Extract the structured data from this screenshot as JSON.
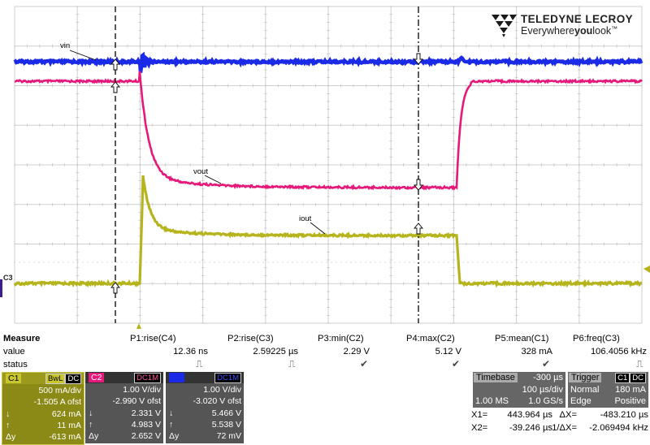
{
  "logo": {
    "title": "TELEDYNE LECROY",
    "tag_pre": "Everywhere",
    "tag_bold": "you",
    "tag_post": "look",
    "tm": "™"
  },
  "waveform_labels": {
    "vin": "vin",
    "vout": "vout",
    "iout": "iout"
  },
  "channel_marker": "C3",
  "colors": {
    "c1": "#b6b41c",
    "c2": "#e6197a",
    "c3": "#1a2ae6",
    "grid": "#cfcfcf",
    "cursor": "#000000"
  },
  "measure": {
    "title": "Measure",
    "row_labels": [
      "value",
      "status"
    ],
    "params": [
      {
        "name": "P1:rise(C4)",
        "value": "12.36 ns",
        "status": "pulse"
      },
      {
        "name": "P2:rise(C3)",
        "value": "2.59225 µs",
        "status": "pulse"
      },
      {
        "name": "P3:min(C2)",
        "value": "2.29 V",
        "status": "check"
      },
      {
        "name": "P4:max(C2)",
        "value": "5.12 V",
        "status": "check"
      },
      {
        "name": "P5:mean(C1)",
        "value": "328 mA",
        "status": "check"
      },
      {
        "name": "P6:freq(C3)",
        "value": "106.4056 kHz",
        "status": "pulse"
      }
    ]
  },
  "channels": [
    {
      "id": "C1",
      "bw": "BwL",
      "coupling": "DC",
      "vdiv": "500 mA/div",
      "ofst": "-1.505 A ofst",
      "down": "624 mA",
      "up": "11 mA",
      "delta": "-613 mA",
      "color": "#b6b41c"
    },
    {
      "id": "C2",
      "bw": "",
      "coupling": "DC1M",
      "vdiv": "1.00 V/div",
      "ofst": "-2.990 V ofst",
      "down": "2.331 V",
      "up": "4.983 V",
      "delta": "2.652 V",
      "color": "#e6197a"
    },
    {
      "id": "C3",
      "bw": "",
      "coupling": "DC1M",
      "vdiv": "1.00 V/div",
      "ofst": "-3.020 V ofst",
      "down": "5.466 V",
      "up": "5.538 V",
      "delta": "72 mV",
      "color": "#1a2ae6"
    }
  ],
  "timebase": {
    "label": "Timebase",
    "delay": "-300 µs",
    "tdiv": "100 µs/div",
    "samples": "1.00 MS",
    "rate": "1.0 GS/s"
  },
  "trigger": {
    "label": "Trigger",
    "src": "C1",
    "coupling": "DC",
    "mode": "Normal",
    "level": "180 mA",
    "type": "Edge",
    "slope": "Positive"
  },
  "cursors": {
    "x1_label": "X1=",
    "x1": "443.964 µs",
    "dx_label": "ΔX=",
    "dx": "-483.210 µs",
    "x2_label": "X2=",
    "x2": "-39.246 µs",
    "inv_dx_label": "1/ΔX=",
    "inv_dx": "-2.069494 kHz"
  }
}
